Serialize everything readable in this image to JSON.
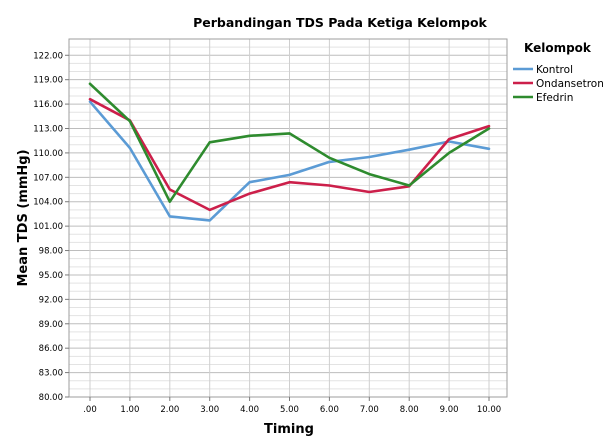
{
  "chart_data": {
    "type": "line",
    "title": "Perbandingan TDS Pada Ketiga Kelompok",
    "xlabel": "Timing",
    "ylabel": "Mean TDS (mmHg)",
    "x": [
      0,
      1,
      2,
      3,
      4,
      5,
      6,
      7,
      8,
      9,
      10
    ],
    "x_tick_labels": [
      ".00",
      "1.00",
      "2.00",
      "3.00",
      "4.00",
      "5.00",
      "6.00",
      "7.00",
      "8.00",
      "9.00",
      "10.00"
    ],
    "ylim": [
      80,
      124
    ],
    "y_ticks": [
      80,
      83,
      86,
      89,
      92,
      95,
      98,
      101,
      104,
      107,
      110,
      113,
      116,
      119,
      122
    ],
    "y_tick_labels": [
      "80.00",
      "83.00",
      "86.00",
      "89.00",
      "92.00",
      "95.00",
      "98.00",
      "101.00",
      "104.00",
      "107.00",
      "110.00",
      "113.00",
      "116.00",
      "119.00",
      "122.00"
    ],
    "grid": true,
    "legend": {
      "title": "Kelompok",
      "position": "top-right"
    },
    "series": [
      {
        "name": "Kontrol",
        "color": "#5b9bd5",
        "values": [
          116.3,
          110.6,
          102.2,
          101.7,
          106.4,
          107.3,
          108.9,
          109.5,
          110.4,
          111.4,
          110.5
        ]
      },
      {
        "name": "Ondansetron",
        "color": "#cc1f4a",
        "values": [
          116.6,
          114.0,
          105.5,
          103.0,
          105.0,
          106.4,
          106.0,
          105.2,
          105.9,
          111.7,
          113.3
        ]
      },
      {
        "name": "Efedrin",
        "color": "#2e8b2e",
        "values": [
          118.5,
          113.9,
          104.0,
          111.3,
          112.1,
          112.4,
          109.4,
          107.4,
          106.0,
          110.0,
          113.0
        ]
      }
    ]
  }
}
